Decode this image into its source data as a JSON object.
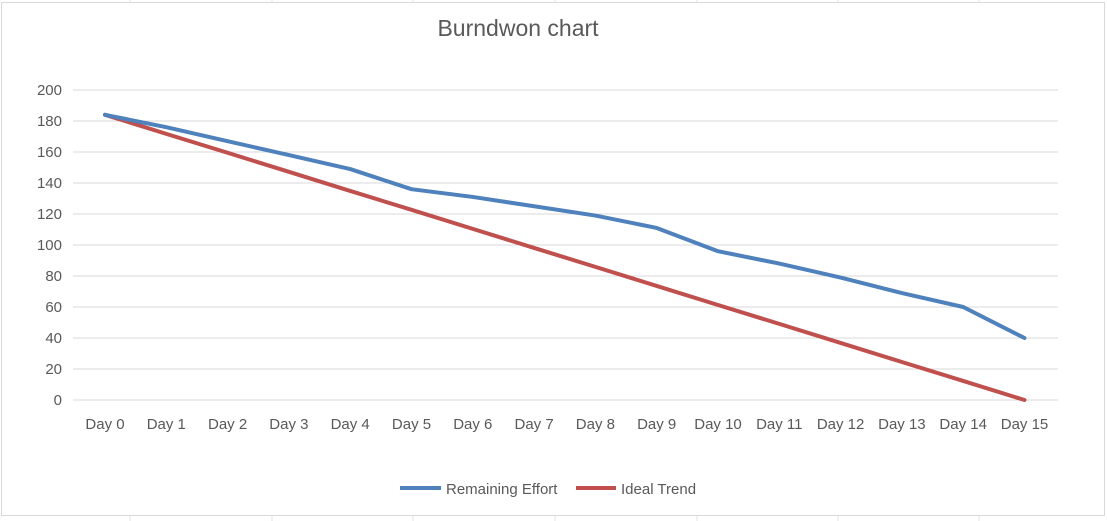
{
  "chart_data": {
    "type": "line",
    "title": "Burndwon chart",
    "categories": [
      "Day 0",
      "Day 1",
      "Day 2",
      "Day 3",
      "Day 4",
      "Day 5",
      "Day 6",
      "Day 7",
      "Day 8",
      "Day 9",
      "Day 10",
      "Day 11",
      "Day 12",
      "Day 13",
      "Day 14",
      "Day 15"
    ],
    "ylim": [
      0,
      200
    ],
    "yticks": [
      0,
      20,
      40,
      60,
      80,
      100,
      120,
      140,
      160,
      180,
      200
    ],
    "grid": true,
    "legend_position": "bottom",
    "series": [
      {
        "name": "Remaining Effort",
        "color": "#4f81bd",
        "values": [
          184,
          176,
          167,
          158,
          149,
          136,
          131,
          125,
          119,
          111,
          96,
          88,
          79,
          69,
          60,
          40
        ]
      },
      {
        "name": "Ideal Trend",
        "color": "#c0504d",
        "values": [
          184,
          171.7,
          159.5,
          147.2,
          134.9,
          122.7,
          110.4,
          98.1,
          85.9,
          73.6,
          61.3,
          49.1,
          36.8,
          24.5,
          12.3,
          0
        ]
      }
    ]
  }
}
